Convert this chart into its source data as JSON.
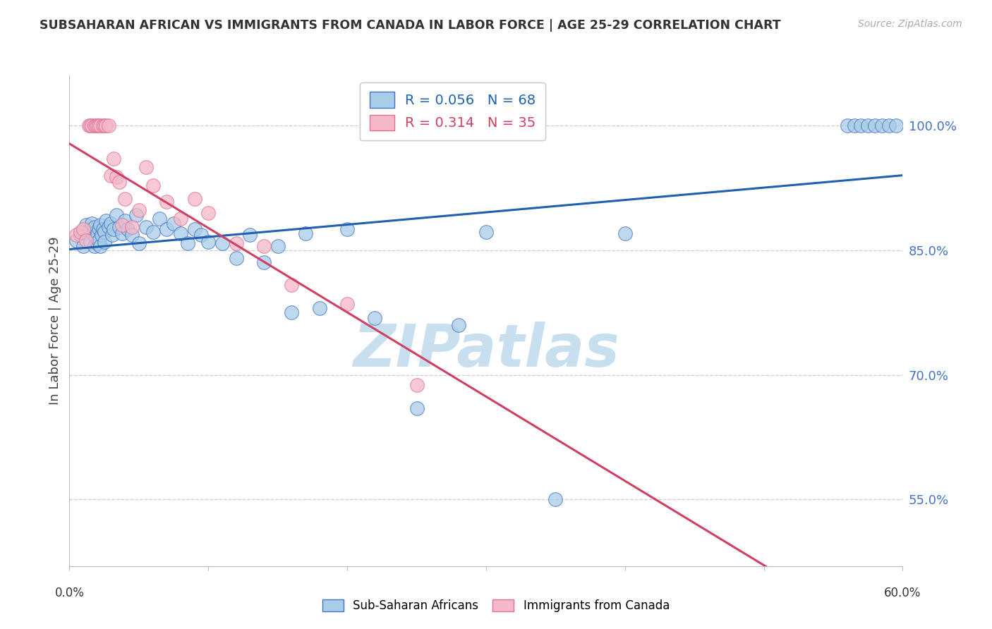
{
  "title": "SUBSAHARAN AFRICAN VS IMMIGRANTS FROM CANADA IN LABOR FORCE | AGE 25-29 CORRELATION CHART",
  "source": "Source: ZipAtlas.com",
  "ylabel": "In Labor Force | Age 25-29",
  "x_left_label": "0.0%",
  "x_right_label": "60.0%",
  "ytick_labels": [
    "55.0%",
    "70.0%",
    "85.0%",
    "100.0%"
  ],
  "ytick_values": [
    0.55,
    0.7,
    0.85,
    1.0
  ],
  "xlim": [
    0.0,
    0.6
  ],
  "ylim": [
    0.47,
    1.06
  ],
  "legend_r_blue": "0.056",
  "legend_n_blue": "68",
  "legend_r_pink": "0.314",
  "legend_n_pink": "35",
  "legend_label_blue": "Sub-Saharan Africans",
  "legend_label_pink": "Immigrants from Canada",
  "blue_color": "#a8cde8",
  "pink_color": "#f4b8c8",
  "blue_edge_color": "#4472c4",
  "pink_edge_color": "#e07090",
  "blue_line_color": "#2060b0",
  "pink_line_color": "#d04060",
  "grid_color": "#cccccc",
  "title_color": "#333333",
  "axis_label_color": "#4472c4",
  "watermark_color": "#c8dff0",
  "blue_scatter_x": [
    0.005,
    0.008,
    0.01,
    0.01,
    0.012,
    0.015,
    0.015,
    0.016,
    0.017,
    0.018,
    0.018,
    0.019,
    0.02,
    0.02,
    0.021,
    0.021,
    0.022,
    0.022,
    0.023,
    0.024,
    0.025,
    0.025,
    0.026,
    0.028,
    0.03,
    0.031,
    0.032,
    0.034,
    0.036,
    0.038,
    0.04,
    0.042,
    0.045,
    0.048,
    0.05,
    0.055,
    0.06,
    0.065,
    0.07,
    0.075,
    0.08,
    0.085,
    0.09,
    0.095,
    0.1,
    0.11,
    0.12,
    0.13,
    0.14,
    0.15,
    0.16,
    0.17,
    0.18,
    0.2,
    0.22,
    0.25,
    0.28,
    0.3,
    0.35,
    0.4,
    0.56,
    0.565,
    0.57,
    0.575,
    0.58,
    0.585,
    0.59,
    0.595
  ],
  "blue_scatter_y": [
    0.862,
    0.868,
    0.872,
    0.855,
    0.88,
    0.875,
    0.86,
    0.882,
    0.87,
    0.855,
    0.878,
    0.865,
    0.87,
    0.858,
    0.876,
    0.862,
    0.88,
    0.855,
    0.868,
    0.875,
    0.872,
    0.86,
    0.885,
    0.878,
    0.882,
    0.868,
    0.875,
    0.892,
    0.878,
    0.87,
    0.885,
    0.875,
    0.868,
    0.892,
    0.858,
    0.878,
    0.872,
    0.888,
    0.875,
    0.882,
    0.87,
    0.858,
    0.875,
    0.868,
    0.86,
    0.858,
    0.84,
    0.868,
    0.835,
    0.855,
    0.775,
    0.87,
    0.78,
    0.875,
    0.768,
    0.66,
    0.76,
    0.872,
    0.55,
    0.87,
    1.0,
    1.0,
    1.0,
    1.0,
    1.0,
    1.0,
    1.0,
    1.0
  ],
  "pink_scatter_x": [
    0.005,
    0.008,
    0.01,
    0.012,
    0.014,
    0.015,
    0.016,
    0.018,
    0.019,
    0.02,
    0.021,
    0.022,
    0.024,
    0.025,
    0.026,
    0.028,
    0.03,
    0.032,
    0.034,
    0.036,
    0.038,
    0.04,
    0.045,
    0.05,
    0.055,
    0.06,
    0.07,
    0.08,
    0.09,
    0.1,
    0.12,
    0.14,
    0.16,
    0.2,
    0.25
  ],
  "pink_scatter_y": [
    0.868,
    0.872,
    0.875,
    0.862,
    1.0,
    1.0,
    1.0,
    1.0,
    1.0,
    1.0,
    1.0,
    1.0,
    1.0,
    1.0,
    1.0,
    1.0,
    0.94,
    0.96,
    0.938,
    0.932,
    0.88,
    0.912,
    0.878,
    0.898,
    0.95,
    0.928,
    0.908,
    0.888,
    0.912,
    0.895,
    0.858,
    0.855,
    0.808,
    0.785,
    0.688
  ]
}
